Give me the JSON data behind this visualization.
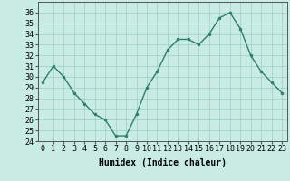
{
  "x": [
    0,
    1,
    2,
    3,
    4,
    5,
    6,
    7,
    8,
    9,
    10,
    11,
    12,
    13,
    14,
    15,
    16,
    17,
    18,
    19,
    20,
    21,
    22,
    23
  ],
  "y": [
    29.5,
    31.0,
    30.0,
    28.5,
    27.5,
    26.5,
    26.0,
    24.5,
    24.5,
    26.5,
    29.0,
    30.5,
    32.5,
    33.5,
    33.5,
    33.0,
    34.0,
    35.5,
    36.0,
    34.5,
    32.0,
    30.5,
    29.5,
    28.5
  ],
  "line_color": "#2e7d6e",
  "marker": "o",
  "marker_size": 2.0,
  "linewidth": 1.0,
  "xlabel": "Humidex (Indice chaleur)",
  "ylim": [
    24,
    37
  ],
  "yticks": [
    24,
    25,
    26,
    27,
    28,
    29,
    30,
    31,
    32,
    33,
    34,
    35,
    36
  ],
  "xtick_labels": [
    "0",
    "1",
    "2",
    "3",
    "4",
    "5",
    "6",
    "7",
    "8",
    "9",
    "10",
    "11",
    "12",
    "13",
    "14",
    "15",
    "16",
    "17",
    "18",
    "19",
    "20",
    "21",
    "22",
    "23"
  ],
  "background_color": "#c8ebe3",
  "grid_color": "#9ecfc4",
  "xlabel_fontsize": 7,
  "tick_fontsize": 6
}
